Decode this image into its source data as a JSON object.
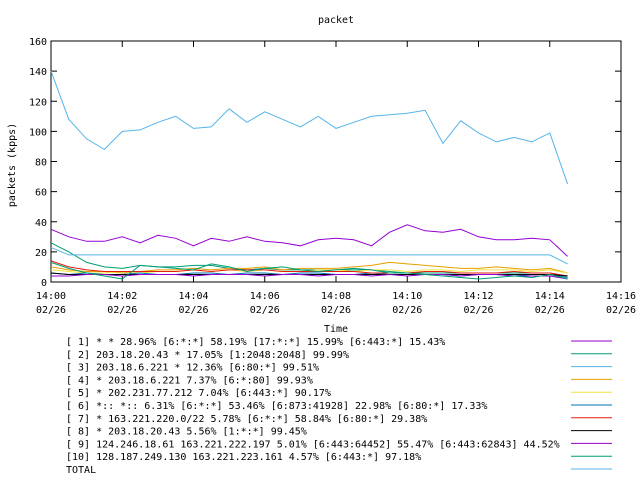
{
  "chart_data": {
    "type": "line",
    "title": "packet",
    "xlabel": "Time",
    "ylabel": "packets (kpps)",
    "ylim": [
      0,
      160
    ],
    "yticks": [
      0,
      20,
      40,
      60,
      80,
      100,
      120,
      140,
      160
    ],
    "xlim": [
      "2026-02-26T14:00",
      "2026-02-26T14:16"
    ],
    "xticks": [
      {
        "time": "14:00",
        "date": "02/26"
      },
      {
        "time": "14:02",
        "date": "02/26"
      },
      {
        "time": "14:04",
        "date": "02/26"
      },
      {
        "time": "14:06",
        "date": "02/26"
      },
      {
        "time": "14:08",
        "date": "02/26"
      },
      {
        "time": "14:10",
        "date": "02/26"
      },
      {
        "time": "14:12",
        "date": "02/26"
      },
      {
        "time": "14:14",
        "date": "02/26"
      },
      {
        "time": "14:16",
        "date": "02/26"
      }
    ],
    "grid": false,
    "legend_position": "bottom",
    "x": [
      "14:00",
      "14:00:30",
      "14:01",
      "14:01:30",
      "14:02",
      "14:02:30",
      "14:03",
      "14:03:30",
      "14:04",
      "14:04:30",
      "14:05",
      "14:05:30",
      "14:06",
      "14:06:30",
      "14:07",
      "14:07:30",
      "14:08",
      "14:08:30",
      "14:09",
      "14:09:30",
      "14:10",
      "14:10:30",
      "14:11",
      "14:11:30",
      "14:12",
      "14:12:30",
      "14:13",
      "14:13:30",
      "14:14",
      "14:14:30"
    ],
    "series": [
      {
        "name": "[ 1] * * 28.96%  [6:*:*] 58.19% [17:*:*] 15.99% [6:443:*] 15.43%",
        "color": "#9400d3",
        "values": [
          35,
          30,
          27,
          27,
          30,
          26,
          31,
          29,
          24,
          29,
          27,
          30,
          27,
          26,
          24,
          28,
          29,
          28,
          24,
          33,
          38,
          34,
          33,
          35,
          30,
          28,
          28,
          29,
          28,
          17
        ]
      },
      {
        "name": "[ 2] 203.18.20.43 * 17.05%  [1:2048:2048] 99.99%",
        "color": "#009e73",
        "values": [
          26,
          20,
          13,
          10,
          9,
          11,
          10,
          10,
          11,
          11,
          9,
          8,
          9,
          8,
          8,
          8,
          8,
          8,
          8,
          7,
          6,
          6,
          6,
          6,
          6,
          6,
          6,
          6,
          6,
          4
        ]
      },
      {
        "name": "[ 3] 203.18.6.221 * 12.36%  [6:80:*] 99.51%",
        "color": "#56b4e9",
        "values": [
          23,
          18,
          18,
          18,
          18,
          18,
          18,
          18,
          18,
          18,
          18,
          18,
          18,
          18,
          18,
          18,
          18,
          18,
          18,
          18,
          18,
          18,
          18,
          18,
          18,
          18,
          18,
          18,
          18,
          12
        ]
      },
      {
        "name": "[ 4] * 203.18.6.221 7.37%  [6:*:80] 99.93%",
        "color": "#e69f00",
        "values": [
          10,
          8,
          7,
          7,
          6,
          7,
          8,
          8,
          9,
          8,
          9,
          9,
          10,
          8,
          9,
          9,
          9,
          10,
          11,
          13,
          12,
          11,
          10,
          9,
          9,
          10,
          9,
          8,
          9,
          6
        ]
      },
      {
        "name": "[ 5] * 202.231.77.212 7.04%  [6:443:*] 90.17%",
        "color": "#f0e442",
        "values": [
          8,
          7,
          6,
          6,
          7,
          6,
          7,
          7,
          8,
          7,
          8,
          7,
          8,
          7,
          7,
          8,
          8,
          7,
          8,
          8,
          7,
          8,
          8,
          7,
          8,
          8,
          8,
          7,
          8,
          6
        ]
      },
      {
        "name": "[ 6] *:: *:: 6.31%  [6:*:*] 53.46% [6:873:41928] 22.98% [6:80:*] 17.33%",
        "color": "#0072b2",
        "values": [
          6,
          5,
          6,
          5,
          5,
          6,
          5,
          5,
          6,
          6,
          5,
          6,
          6,
          5,
          6,
          6,
          5,
          5,
          6,
          5,
          5,
          5,
          5,
          4,
          5,
          5,
          4,
          5,
          5,
          3
        ]
      },
      {
        "name": "[ 7] * 163.221.220.0/22 5.78%  [6:*:*] 58.84% [6:80:*] 29.38%",
        "color": "#e51e10",
        "values": [
          14,
          10,
          8,
          7,
          7,
          7,
          7,
          7,
          8,
          7,
          8,
          8,
          8,
          7,
          7,
          7,
          7,
          7,
          6,
          6,
          6,
          7,
          7,
          6,
          6,
          6,
          7,
          6,
          6,
          4
        ]
      },
      {
        "name": "[ 8] * 203.18.20.43 5.56%  [1:*:*] 99.45%",
        "color": "#000000",
        "values": [
          6,
          5,
          5,
          5,
          5,
          5,
          5,
          5,
          5,
          5,
          5,
          5,
          5,
          5,
          5,
          5,
          5,
          5,
          5,
          5,
          5,
          5,
          5,
          5,
          5,
          5,
          5,
          5,
          5,
          4
        ]
      },
      {
        "name": "[ 9] 124.246.18.61 163.221.222.197 5.01%  [6:443:64452] 55.47% [6:443:62843] 44.52%",
        "color": "#9400d3",
        "values": [
          4,
          4,
          5,
          5,
          4,
          5,
          5,
          5,
          4,
          5,
          5,
          5,
          4,
          5,
          5,
          4,
          5,
          5,
          4,
          5,
          4,
          5,
          5,
          4,
          5,
          5,
          4,
          4,
          4,
          2
        ]
      },
      {
        "name": "[10] 128.187.249.130 163.221.223.161 4.57%  [6:443:*] 97.18%",
        "color": "#009e73",
        "values": [
          13,
          9,
          6,
          4,
          2,
          11,
          10,
          9,
          8,
          12,
          10,
          7,
          9,
          10,
          8,
          7,
          8,
          9,
          8,
          6,
          6,
          5,
          4,
          3,
          2,
          3,
          4,
          3,
          5,
          2
        ]
      },
      {
        "name": "TOTAL",
        "color": "#56b4e9",
        "values": [
          140,
          108,
          95,
          88,
          100,
          101,
          106,
          110,
          102,
          103,
          115,
          106,
          113,
          108,
          103,
          110,
          102,
          106,
          110,
          111,
          112,
          114,
          92,
          107,
          99,
          93,
          96,
          93,
          99,
          65
        ]
      }
    ]
  }
}
